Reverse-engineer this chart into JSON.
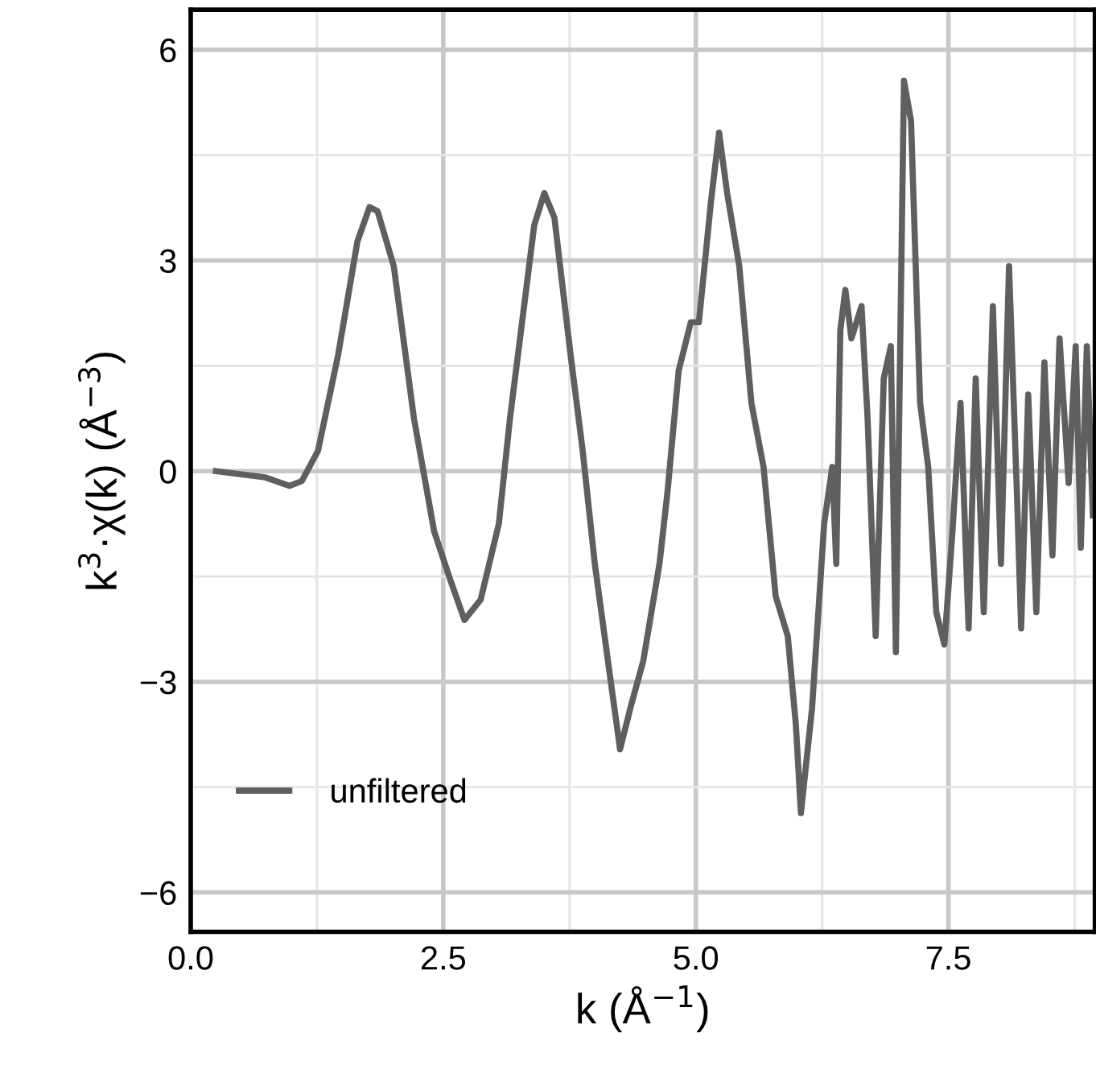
{
  "chart_data": {
    "type": "line",
    "xlabel": "k (Å$^{−1}$)",
    "ylabel": "k$^{3}$·χ(k) (Å$^{−3}$)",
    "xlim": [
      0,
      8.95
    ],
    "ylim": [
      -6.56,
      6.57
    ],
    "xticks": [
      {
        "value": 0,
        "label": "0.0"
      },
      2.5,
      {
        "value": 5,
        "label": "5.0"
      },
      7.5
    ],
    "yticks": [
      {
        "value": -6,
        "label": "−6"
      },
      {
        "value": -3,
        "label": "−3"
      },
      0,
      3,
      6
    ],
    "grid": true,
    "legend": "bottom left",
    "marker": "none",
    "line_style": "solid",
    "series": [
      {
        "name": "unfiltered",
        "color": "#5f5f5f",
        "x": [
          0.25,
          0.74,
          0.98,
          1.1,
          1.26,
          1.46,
          1.65,
          1.77,
          1.85,
          2.01,
          2.21,
          2.41,
          2.57,
          2.71,
          2.87,
          3.05,
          3.16,
          3.28,
          3.4,
          3.5,
          3.6,
          3.76,
          3.88,
          4.0,
          4.14,
          4.25,
          4.36,
          4.48,
          4.64,
          4.72,
          4.83,
          4.95,
          5.03,
          5.15,
          5.23,
          5.31,
          5.43,
          5.55,
          5.67,
          5.79,
          5.91,
          5.99,
          6.04,
          6.15,
          6.27,
          6.35,
          6.39,
          6.43,
          6.48,
          6.54,
          6.64,
          6.7,
          6.78,
          6.86,
          6.93,
          6.98,
          7.06,
          7.13,
          7.22,
          7.3,
          7.38,
          7.46,
          7.54,
          7.62,
          7.7,
          7.77,
          7.85,
          7.94,
          8.02,
          8.1,
          8.18,
          8.22,
          8.29,
          8.37,
          8.45,
          8.53,
          8.6,
          8.69,
          8.76,
          8.81,
          8.87,
          8.93
        ],
        "values": [
          0,
          -0.09,
          -0.21,
          -0.14,
          0.29,
          1.66,
          3.27,
          3.76,
          3.7,
          2.92,
          0.75,
          -0.86,
          -1.55,
          -2.12,
          -1.83,
          -0.75,
          0.75,
          2.12,
          3.5,
          3.96,
          3.61,
          1.66,
          0.29,
          -1.32,
          -2.81,
          -3.96,
          -3.33,
          -2.7,
          -1.32,
          -0.29,
          1.43,
          2.12,
          2.12,
          3.84,
          4.82,
          3.96,
          2.92,
          0.97,
          0.06,
          -1.78,
          -2.35,
          -3.61,
          -4.87,
          -3.38,
          -0.75,
          0.06,
          -1.32,
          2.01,
          2.58,
          1.89,
          2.35,
          0.75,
          -2.35,
          1.32,
          1.78,
          -2.58,
          5.56,
          4.99,
          0.97,
          0.06,
          -2.01,
          -2.47,
          -0.86,
          0.97,
          -2.24,
          1.32,
          -2.01,
          2.35,
          -1.32,
          2.92,
          -0.4,
          -2.24,
          1.09,
          -2.01,
          1.55,
          -1.2,
          1.89,
          -0.17,
          1.78,
          -1.09,
          1.78,
          -0.63
        ]
      }
    ]
  }
}
